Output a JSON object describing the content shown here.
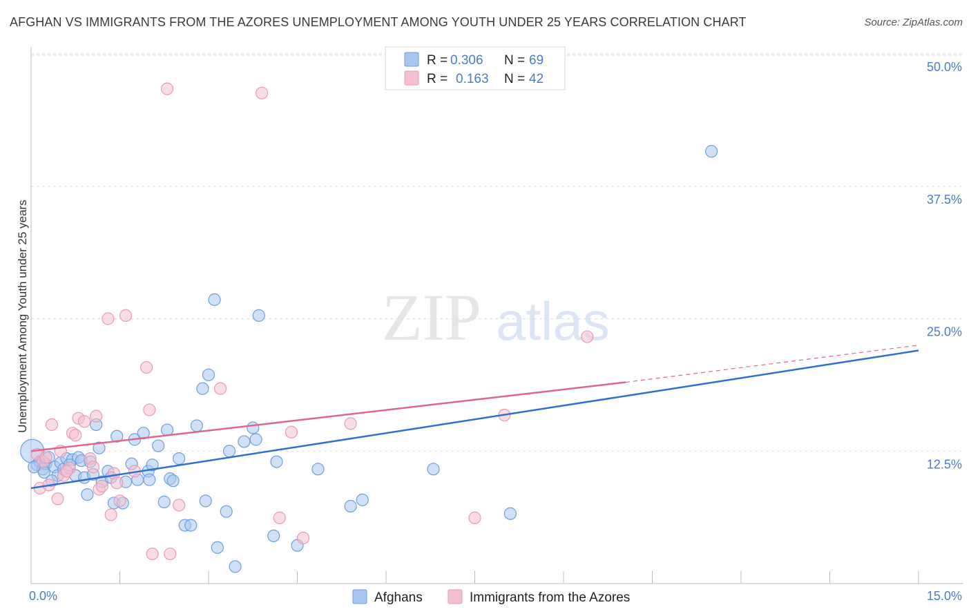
{
  "title": "AFGHAN VS IMMIGRANTS FROM THE AZORES UNEMPLOYMENT AMONG YOUTH UNDER 25 YEARS CORRELATION CHART",
  "source": "Source: ZipAtlas.com",
  "watermark": {
    "zip": "ZIP",
    "atlas": "atlas"
  },
  "colors": {
    "blue_fill": "#a8c6f0",
    "blue_stroke": "#6e9fdc",
    "blue_line": "#2f6fcf",
    "pink_fill": "#f6bfd0",
    "pink_stroke": "#e99ab4",
    "pink_line": "#e0648e",
    "grid": "#dddddd",
    "tick_text": "#4a7cc9"
  },
  "chart_data": {
    "type": "scatter",
    "title": "AFGHAN VS IMMIGRANTS FROM THE AZORES UNEMPLOYMENT AMONG YOUTH UNDER 25 YEARS CORRELATION CHART",
    "xlabel": "",
    "ylabel": "Unemployment Among Youth under 25 years",
    "xlim": [
      0,
      15
    ],
    "ylim": [
      0,
      50
    ],
    "x_tick_labels": [
      "0.0%",
      "15.0%"
    ],
    "y_ticks": [
      12.5,
      25.0,
      37.5,
      50.0
    ],
    "y_tick_labels": [
      "12.5%",
      "25.0%",
      "37.5%",
      "50.0%"
    ],
    "legend": [
      {
        "series": "Afghans",
        "r_label": "R =",
        "r": "0.306",
        "n_label": "N =",
        "n": "69"
      },
      {
        "series": "Immigrants from the Azores",
        "r_label": "R =",
        "r": "0.163",
        "n_label": "N =",
        "n": "42"
      }
    ],
    "series": [
      {
        "name": "Afghans",
        "color": "blue",
        "trend": {
          "x0": 0.0,
          "y0": 9.0,
          "x1": 15.0,
          "y1": 22.0
        },
        "points": [
          [
            0.02,
            12.5
          ],
          [
            0.1,
            11.2
          ],
          [
            0.15,
            11.5
          ],
          [
            0.2,
            10.8
          ],
          [
            0.25,
            11.3
          ],
          [
            0.3,
            11.9
          ],
          [
            0.4,
            11.0
          ],
          [
            0.45,
            10.2
          ],
          [
            0.5,
            11.4
          ],
          [
            0.55,
            10.8
          ],
          [
            0.6,
            11.8
          ],
          [
            0.7,
            11.7
          ],
          [
            0.75,
            10.2
          ],
          [
            0.8,
            11.9
          ],
          [
            0.85,
            11.6
          ],
          [
            0.9,
            10.0
          ],
          [
            0.95,
            8.4
          ],
          [
            1.0,
            11.5
          ],
          [
            1.05,
            10.3
          ],
          [
            1.1,
            15.0
          ],
          [
            1.15,
            12.8
          ],
          [
            1.2,
            9.6
          ],
          [
            1.3,
            10.6
          ],
          [
            1.35,
            10.0
          ],
          [
            1.4,
            7.6
          ],
          [
            1.45,
            13.9
          ],
          [
            1.55,
            7.6
          ],
          [
            1.6,
            9.6
          ],
          [
            1.7,
            11.3
          ],
          [
            1.75,
            13.6
          ],
          [
            1.8,
            9.8
          ],
          [
            1.9,
            14.2
          ],
          [
            1.98,
            10.6
          ],
          [
            2.0,
            9.8
          ],
          [
            2.05,
            11.2
          ],
          [
            2.15,
            13.0
          ],
          [
            2.25,
            7.7
          ],
          [
            2.3,
            14.5
          ],
          [
            2.35,
            9.9
          ],
          [
            2.4,
            9.7
          ],
          [
            2.5,
            11.8
          ],
          [
            2.6,
            5.5
          ],
          [
            2.7,
            5.5
          ],
          [
            2.8,
            14.9
          ],
          [
            2.9,
            18.4
          ],
          [
            2.95,
            7.8
          ],
          [
            3.0,
            19.7
          ],
          [
            3.1,
            26.8
          ],
          [
            3.15,
            3.4
          ],
          [
            3.3,
            6.8
          ],
          [
            3.35,
            12.5
          ],
          [
            3.45,
            1.6
          ],
          [
            3.6,
            13.4
          ],
          [
            3.75,
            14.7
          ],
          [
            3.8,
            13.6
          ],
          [
            3.85,
            25.3
          ],
          [
            4.1,
            4.5
          ],
          [
            4.15,
            11.5
          ],
          [
            4.5,
            3.6
          ],
          [
            4.85,
            10.8
          ],
          [
            5.4,
            7.3
          ],
          [
            5.6,
            7.9
          ],
          [
            6.8,
            10.8
          ],
          [
            8.1,
            6.6
          ],
          [
            11.5,
            40.8
          ],
          [
            0.05,
            11.0
          ],
          [
            0.22,
            10.5
          ],
          [
            0.35,
            9.7
          ],
          [
            0.65,
            11.2
          ]
        ]
      },
      {
        "name": "Immigrants from the Azores",
        "color": "pink",
        "trend": {
          "x0": 0.0,
          "y0": 12.5,
          "x1": 10.05,
          "y1": 19.0
        },
        "trend_dashed": {
          "x0": 10.05,
          "y0": 19.0,
          "x1": 15.0,
          "y1": 22.5
        },
        "points": [
          [
            0.1,
            12.2
          ],
          [
            0.15,
            9.0
          ],
          [
            0.2,
            11.5
          ],
          [
            0.3,
            9.3
          ],
          [
            0.35,
            15.0
          ],
          [
            0.45,
            8.0
          ],
          [
            0.5,
            12.5
          ],
          [
            0.55,
            10.2
          ],
          [
            0.65,
            10.9
          ],
          [
            0.7,
            14.2
          ],
          [
            0.75,
            14.0
          ],
          [
            0.8,
            15.6
          ],
          [
            0.9,
            15.3
          ],
          [
            1.0,
            11.8
          ],
          [
            1.05,
            11.0
          ],
          [
            1.1,
            15.8
          ],
          [
            1.15,
            8.9
          ],
          [
            1.3,
            25.0
          ],
          [
            1.35,
            6.5
          ],
          [
            1.4,
            10.4
          ],
          [
            1.45,
            9.5
          ],
          [
            1.5,
            7.8
          ],
          [
            1.6,
            25.3
          ],
          [
            1.75,
            10.6
          ],
          [
            1.95,
            20.4
          ],
          [
            2.0,
            16.4
          ],
          [
            2.05,
            2.8
          ],
          [
            2.3,
            46.7
          ],
          [
            2.35,
            2.8
          ],
          [
            2.5,
            7.4
          ],
          [
            3.2,
            18.4
          ],
          [
            3.9,
            46.3
          ],
          [
            4.2,
            6.2
          ],
          [
            4.4,
            14.3
          ],
          [
            4.6,
            4.3
          ],
          [
            5.4,
            15.1
          ],
          [
            7.5,
            6.2
          ],
          [
            8.0,
            15.9
          ],
          [
            9.4,
            23.3
          ],
          [
            0.25,
            11.9
          ],
          [
            0.6,
            10.6
          ],
          [
            1.2,
            9.2
          ]
        ]
      }
    ]
  },
  "bottom_legend": [
    {
      "label": "Afghans",
      "color": "blue"
    },
    {
      "label": "Immigrants from the Azores",
      "color": "pink"
    }
  ]
}
